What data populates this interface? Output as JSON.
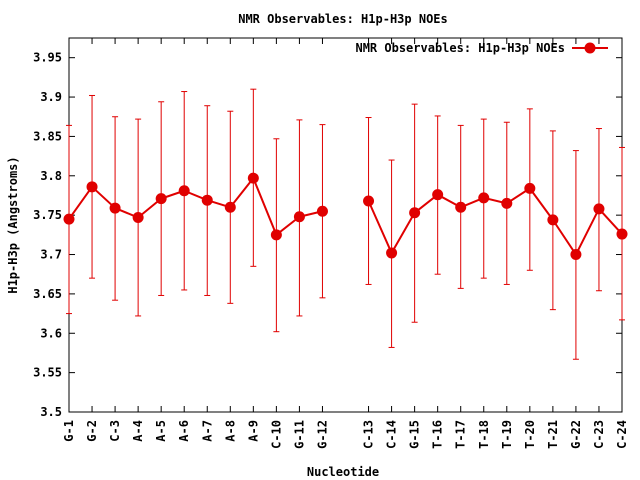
{
  "chart_data": {
    "type": "line",
    "title": "NMR Observables: H1p-H3p NOEs",
    "xlabel": "Nucleotide",
    "ylabel": "H1p-H3p (Angstroms)",
    "ylim": [
      3.5,
      3.975
    ],
    "yticks": [
      "3.5",
      "3.55",
      "3.6",
      "3.65",
      "3.7",
      "3.75",
      "3.8",
      "3.85",
      "3.9",
      "3.95"
    ],
    "legend": {
      "position": "top-right",
      "label": "NMR Observables: H1p-H3p NOEs"
    },
    "color": "#e00000",
    "categories": [
      "G-1",
      "G-2",
      "C-3",
      "A-4",
      "A-5",
      "A-6",
      "A-7",
      "A-8",
      "A-9",
      "C-10",
      "G-11",
      "G-12",
      "C-13",
      "C-14",
      "G-15",
      "T-16",
      "T-17",
      "T-18",
      "T-19",
      "T-20",
      "T-21",
      "G-22",
      "C-23",
      "C-24"
    ],
    "x": [
      1,
      2,
      3,
      4,
      5,
      6,
      7,
      8,
      9,
      10,
      11,
      12,
      14,
      15,
      16,
      17,
      18,
      19,
      20,
      21,
      22,
      23,
      24,
      25
    ],
    "series": [
      {
        "name": "NMR Observables: H1p-H3p NOEs",
        "values": [
          3.745,
          3.786,
          3.759,
          3.747,
          3.771,
          3.781,
          3.769,
          3.76,
          3.797,
          3.725,
          3.748,
          3.755,
          3.768,
          3.702,
          3.753,
          3.776,
          3.76,
          3.772,
          3.765,
          3.784,
          3.744,
          3.7,
          3.758,
          3.726
        ],
        "err_high": [
          3.864,
          3.902,
          3.875,
          3.872,
          3.894,
          3.907,
          3.889,
          3.882,
          3.91,
          3.847,
          3.871,
          3.865,
          3.874,
          3.82,
          3.891,
          3.876,
          3.864,
          3.872,
          3.868,
          3.885,
          3.857,
          3.832,
          3.86,
          3.836
        ],
        "err_low": [
          3.625,
          3.67,
          3.642,
          3.622,
          3.648,
          3.655,
          3.648,
          3.638,
          3.685,
          3.602,
          3.622,
          3.645,
          3.662,
          3.582,
          3.614,
          3.675,
          3.657,
          3.67,
          3.662,
          3.68,
          3.63,
          3.567,
          3.654,
          3.617
        ]
      }
    ]
  }
}
